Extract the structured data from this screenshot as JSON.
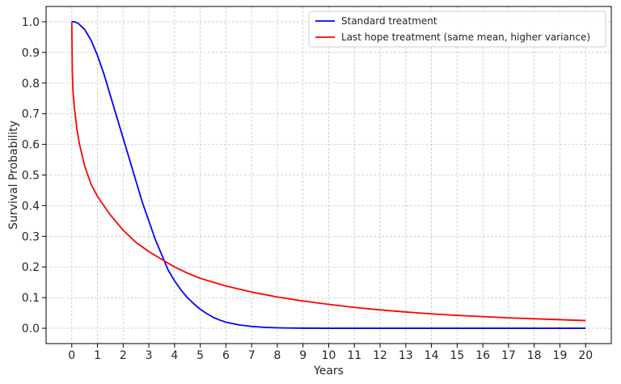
{
  "chart_data": {
    "type": "line",
    "title": "",
    "xlabel": "Years",
    "ylabel": "Survival Probability",
    "xlim": [
      -1,
      21
    ],
    "ylim": [
      -0.05,
      1.05
    ],
    "xticks": [
      0,
      1,
      2,
      3,
      4,
      5,
      6,
      7,
      8,
      9,
      10,
      11,
      12,
      13,
      14,
      15,
      16,
      17,
      18,
      19,
      20
    ],
    "yticks": [
      0.0,
      0.1,
      0.2,
      0.3,
      0.4,
      0.5,
      0.6,
      0.7,
      0.8,
      0.9,
      1.0
    ],
    "ytick_labels": [
      "0.0",
      "0.1",
      "0.2",
      "0.3",
      "0.4",
      "0.5",
      "0.6",
      "0.7",
      "0.8",
      "0.9",
      "1.0"
    ],
    "grid": true,
    "legend_position": "top-right",
    "series": [
      {
        "name": "Standard treatment",
        "color": "#0000ff",
        "x": [
          0,
          0.1,
          0.25,
          0.5,
          0.75,
          1,
          1.25,
          1.5,
          1.75,
          2,
          2.25,
          2.5,
          2.75,
          3,
          3.25,
          3.5,
          3.75,
          4,
          4.25,
          4.5,
          4.75,
          5,
          5.25,
          5.5,
          5.75,
          6,
          6.5,
          7,
          7.5,
          8,
          8.5,
          9,
          10,
          11,
          12,
          13,
          14,
          15,
          16,
          17,
          18,
          19,
          20
        ],
        "y": [
          1.0,
          1.0,
          0.995,
          0.975,
          0.94,
          0.89,
          0.83,
          0.76,
          0.69,
          0.62,
          0.55,
          0.48,
          0.41,
          0.35,
          0.29,
          0.24,
          0.19,
          0.155,
          0.125,
          0.1,
          0.08,
          0.062,
          0.048,
          0.036,
          0.027,
          0.02,
          0.011,
          0.006,
          0.003,
          0.0015,
          0.0007,
          0.0003,
          0.0,
          0.0,
          0.0,
          0.0,
          0.0,
          0.0,
          0.0,
          0.0,
          0.0,
          0.0,
          0.0
        ]
      },
      {
        "name": "Last hope treatment (same mean, higher variance)",
        "color": "#ff0000",
        "x": [
          0,
          0.02,
          0.05,
          0.1,
          0.2,
          0.3,
          0.5,
          0.75,
          1,
          1.5,
          2,
          2.5,
          3,
          3.5,
          4,
          4.5,
          5,
          6,
          7,
          8,
          9,
          10,
          11,
          12,
          13,
          14,
          15,
          16,
          17,
          18,
          19,
          20
        ],
        "y": [
          1.0,
          0.84,
          0.77,
          0.72,
          0.65,
          0.6,
          0.53,
          0.47,
          0.43,
          0.37,
          0.32,
          0.28,
          0.25,
          0.225,
          0.2,
          0.18,
          0.163,
          0.138,
          0.118,
          0.102,
          0.089,
          0.078,
          0.068,
          0.06,
          0.053,
          0.047,
          0.042,
          0.038,
          0.034,
          0.031,
          0.028,
          0.025
        ]
      }
    ]
  }
}
